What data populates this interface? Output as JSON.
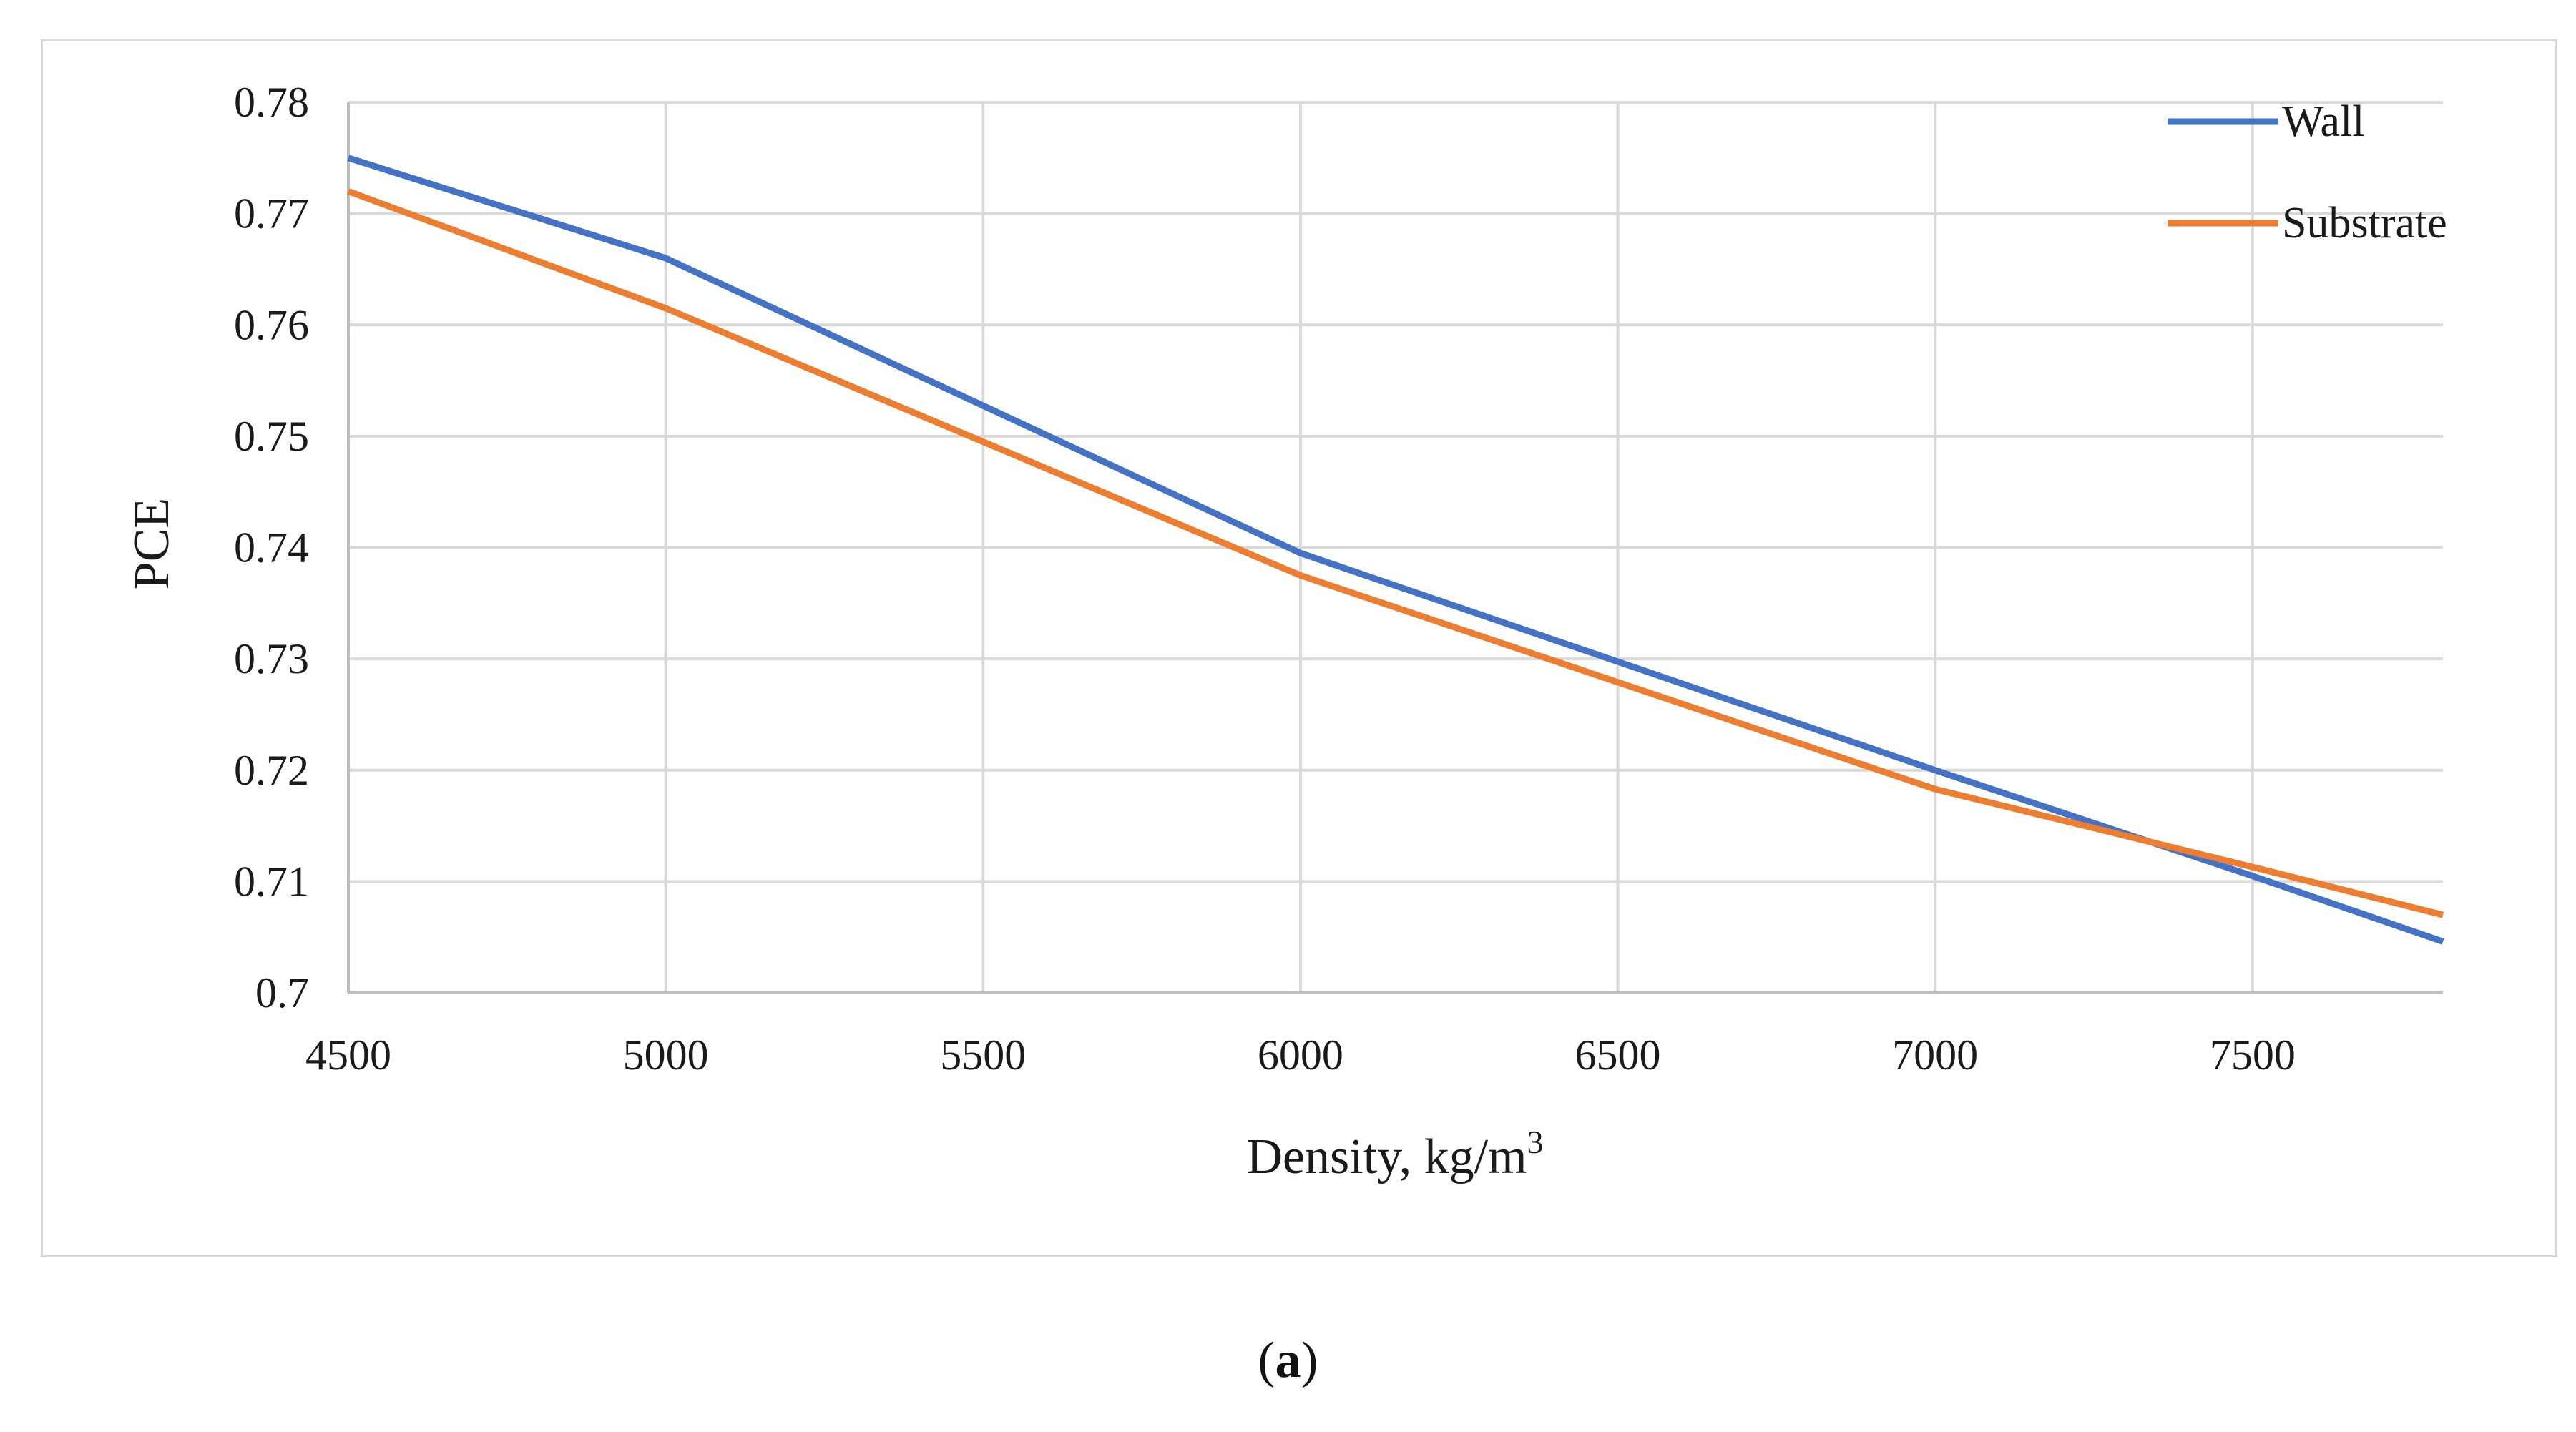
{
  "chart_data": {
    "type": "line",
    "title": "",
    "xlabel": "Density, kg/m",
    "xlabel_superscript": "3",
    "ylabel": "PCE",
    "x": [
      4500,
      5000,
      6000,
      7000,
      7500,
      7800
    ],
    "xlim": [
      4500,
      7800
    ],
    "ylim": [
      0.7,
      0.78
    ],
    "x_ticks": [
      "4500",
      "5000",
      "5500",
      "6000",
      "6500",
      "7000",
      "7500"
    ],
    "x_tick_values": [
      4500,
      5000,
      5500,
      6000,
      6500,
      7000,
      7500
    ],
    "y_ticks": [
      "0.7",
      "0.71",
      "0.72",
      "0.73",
      "0.74",
      "0.75",
      "0.76",
      "0.77",
      "0.78"
    ],
    "y_tick_values": [
      0.7,
      0.71,
      0.72,
      0.73,
      0.74,
      0.75,
      0.76,
      0.77,
      0.78
    ],
    "grid": true,
    "legend_position": "top-right",
    "series": [
      {
        "name": "Wall",
        "color": "#4472c4",
        "values": [
          0.775,
          0.766,
          0.7395,
          0.72,
          0.7105,
          0.7046
        ]
      },
      {
        "name": "Substrate",
        "color": "#ed7d31",
        "values": [
          0.772,
          0.7615,
          0.7375,
          0.7183,
          0.7113,
          0.707
        ]
      }
    ]
  },
  "caption": {
    "open": "(",
    "label": "a",
    "close": ")"
  }
}
